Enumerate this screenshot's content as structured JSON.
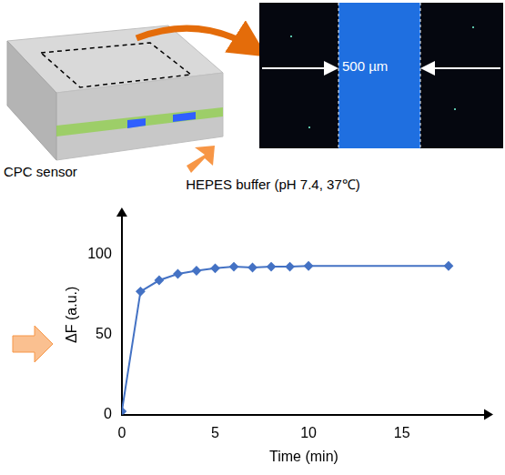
{
  "chart_data": {
    "type": "line",
    "x_label": "Time (min)",
    "y_label": "ΔF (a.u.)",
    "x": [
      0,
      1,
      2,
      3,
      4,
      5,
      6,
      7,
      8,
      9,
      10,
      17.5
    ],
    "values": [
      2,
      77,
      84,
      88,
      90,
      91.5,
      92.5,
      92,
      92.5,
      92.5,
      93,
      93
    ],
    "color": "#4472c4",
    "marker": "diamond",
    "xlim": [
      0,
      19.5
    ],
    "xticks": [
      0,
      5,
      10,
      15
    ],
    "ylim": [
      0,
      125
    ],
    "yticks": [
      0,
      50,
      100
    ],
    "grid": false
  },
  "diagram": {
    "sensor_label": "CPC sensor",
    "scale_label": "500 µm",
    "buffer_label": "HEPES buffer (pH 7.4, 37℃)"
  }
}
